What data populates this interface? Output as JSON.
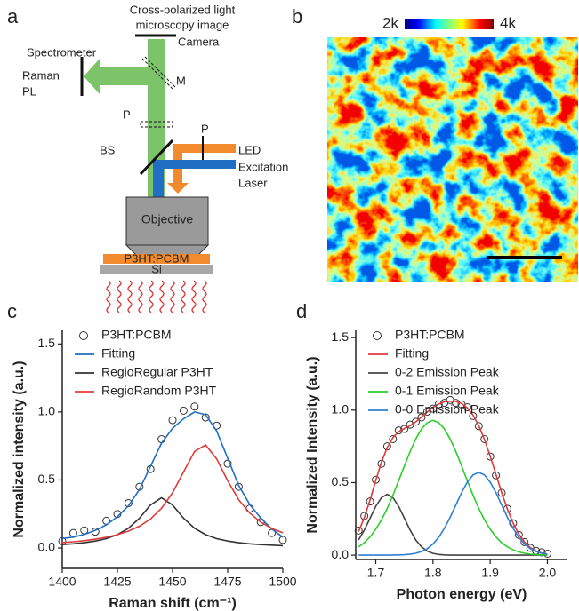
{
  "panel_labels": [
    "a",
    "b",
    "c",
    "d"
  ],
  "diagram": {
    "caption_lines": [
      "Cross-polarized light",
      "microscopy image"
    ],
    "camera": "Camera",
    "spectrometer": "Spectrometer",
    "raman": "Raman",
    "pl": "PL",
    "m": "M",
    "p_left": "P",
    "p_right": "P",
    "bs": "BS",
    "led": "LED",
    "excitation": [
      "Excitation",
      "Laser"
    ],
    "objective": "Objective",
    "sample": "P3HT:PCBM",
    "substrate": "Si"
  },
  "colorbar": {
    "min_label": "2k",
    "max_label": "4k"
  },
  "chart_data": [
    {
      "type": "line",
      "xlabel": "Raman shift (cm⁻¹)",
      "ylabel": "Normalized intensity (a.u.)",
      "xlim": [
        1400,
        1500
      ],
      "ylim": [
        -0.15,
        1.6
      ],
      "xticks": [
        1400,
        1425,
        1450,
        1475,
        1500
      ],
      "yticks": [
        {
          "value": 0,
          "label": "0.0"
        },
        0.5,
        {
          "value": 1,
          "label": "1.0"
        },
        1.5
      ],
      "legend": "upper left",
      "x": [
        1400,
        1405,
        1410,
        1415,
        1420,
        1425,
        1430,
        1435,
        1440,
        1445,
        1450,
        1455,
        1460,
        1465,
        1470,
        1475,
        1480,
        1485,
        1490,
        1495,
        1500
      ],
      "series": [
        {
          "name": "P3HT:PCBM",
          "color": "#333333",
          "marker": "open-circle",
          "values": [
            0.05,
            0.11,
            0.13,
            0.12,
            0.2,
            0.25,
            0.33,
            0.45,
            0.58,
            0.8,
            0.94,
            1.01,
            1.04,
            0.96,
            0.9,
            0.62,
            0.45,
            0.29,
            0.19,
            0.11,
            0.06
          ]
        },
        {
          "name": "Fitting",
          "color": "#1f6fc5",
          "values": [
            0.07,
            0.08,
            0.1,
            0.13,
            0.17,
            0.23,
            0.31,
            0.43,
            0.6,
            0.77,
            0.88,
            0.95,
            1.0,
            0.98,
            0.86,
            0.66,
            0.46,
            0.32,
            0.22,
            0.14,
            0.08
          ]
        },
        {
          "name": "RegioRegular P3HT",
          "color": "#333333",
          "values": [
            0.025,
            0.031,
            0.039,
            0.051,
            0.069,
            0.098,
            0.145,
            0.219,
            0.316,
            0.37,
            0.316,
            0.219,
            0.145,
            0.098,
            0.069,
            0.051,
            0.039,
            0.031,
            0.025,
            0.021,
            0.017
          ]
        },
        {
          "name": "RegioRandom P3HT",
          "color": "#e03a3a",
          "values": [
            0.04,
            0.046,
            0.054,
            0.065,
            0.079,
            0.098,
            0.124,
            0.16,
            0.213,
            0.292,
            0.406,
            0.559,
            0.71,
            0.757,
            0.655,
            0.494,
            0.355,
            0.257,
            0.19,
            0.144,
            0.112
          ]
        }
      ]
    },
    {
      "type": "line",
      "xlabel": "Photon energy (eV)",
      "ylabel": "Normalized Intensity (a.u.)",
      "xlim": [
        1.665,
        2.035
      ],
      "ylim": [
        -0.03,
        1.55
      ],
      "xticks": [
        1.7,
        1.8,
        1.9,
        {
          "value": 2,
          "label": "2.0"
        }
      ],
      "yticks": [
        {
          "value": 0,
          "label": "0.0"
        },
        0.5,
        {
          "value": 1,
          "label": "1.0"
        },
        1.5
      ],
      "legend": "upper left",
      "x": [
        1.67,
        1.68,
        1.69,
        1.7,
        1.71,
        1.72,
        1.73,
        1.74,
        1.75,
        1.76,
        1.77,
        1.78,
        1.79,
        1.8,
        1.81,
        1.82,
        1.83,
        1.84,
        1.85,
        1.86,
        1.87,
        1.88,
        1.89,
        1.9,
        1.91,
        1.92,
        1.93,
        1.94,
        1.95,
        1.96,
        1.97,
        1.98,
        1.99,
        2.0
      ],
      "series": [
        {
          "name": "P3HT:PCBM",
          "color": "#333333",
          "marker": "open-circle",
          "values": [
            0.17,
            0.27,
            0.37,
            0.52,
            0.63,
            0.75,
            0.8,
            0.86,
            0.87,
            0.9,
            0.92,
            0.95,
            0.99,
            1.01,
            1.04,
            1.05,
            1.07,
            1.05,
            1.04,
            1.02,
            0.96,
            0.89,
            0.8,
            0.68,
            0.55,
            0.43,
            0.32,
            0.22,
            0.14,
            0.09,
            0.05,
            0.03,
            0.02,
            0.01
          ]
        },
        {
          "name": "Fitting",
          "color": "#e03a3a",
          "values": [
            0.162,
            0.259,
            0.381,
            0.516,
            0.641,
            0.742,
            0.811,
            0.852,
            0.873,
            0.893,
            0.919,
            0.953,
            0.987,
            1.019,
            1.042,
            1.058,
            1.062,
            1.06,
            1.046,
            1.016,
            0.966,
            0.892,
            0.797,
            0.682,
            0.557,
            0.432,
            0.318,
            0.221,
            0.145,
            0.09,
            0.052,
            0.029,
            0.015,
            0.007
          ]
        },
        {
          "name": "0-2 Emission Peak",
          "color": "#444444",
          "values": [
            0.105,
            0.173,
            0.255,
            0.337,
            0.397,
            0.42,
            0.397,
            0.337,
            0.255,
            0.173,
            0.105,
            0.057,
            0.028,
            0.012,
            0.005,
            0.002,
            0,
            0,
            0,
            0,
            0,
            0,
            0,
            0,
            0,
            0,
            0,
            0,
            0,
            0,
            0,
            0,
            0,
            0
          ]
        },
        {
          "name": "0-1 Emission Peak",
          "color": "#2ccf2c",
          "values": [
            0.057,
            0.086,
            0.126,
            0.179,
            0.244,
            0.322,
            0.413,
            0.513,
            0.615,
            0.714,
            0.801,
            0.871,
            0.914,
            0.93,
            0.914,
            0.871,
            0.801,
            0.714,
            0.615,
            0.513,
            0.413,
            0.322,
            0.244,
            0.179,
            0.126,
            0.086,
            0.057,
            0.036,
            0.022,
            0.013,
            0.007,
            0.004,
            0.002,
            0.001
          ]
        },
        {
          "name": "0-0 Emission Peak",
          "color": "#2f7fd6",
          "values": [
            0,
            0,
            0,
            0,
            0,
            0,
            0.001,
            0.002,
            0.003,
            0.006,
            0.013,
            0.025,
            0.045,
            0.077,
            0.123,
            0.185,
            0.261,
            0.346,
            0.431,
            0.503,
            0.553,
            0.57,
            0.553,
            0.503,
            0.431,
            0.346,
            0.261,
            0.185,
            0.123,
            0.077,
            0.045,
            0.025,
            0.013,
            0.006
          ]
        }
      ]
    }
  ]
}
